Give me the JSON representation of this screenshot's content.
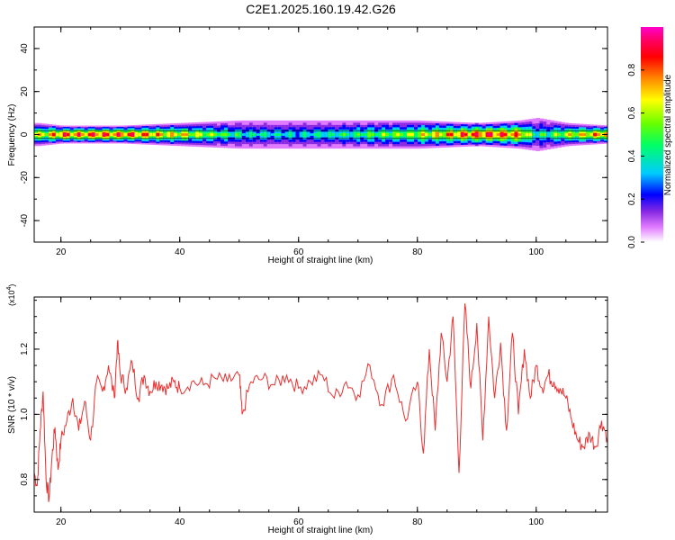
{
  "title": "C2E1.2025.160.19.42.G26",
  "chart_data": [
    {
      "type": "heatmap",
      "xlabel": "Height of straight line (km)",
      "ylabel": "Frequency (Hz)",
      "xlim": [
        15.5,
        112
      ],
      "ylim": [
        -50,
        50
      ],
      "xticks": [
        20,
        40,
        60,
        80,
        100
      ],
      "yticks": [
        40,
        20,
        0,
        -20,
        -40
      ],
      "yticklabels": [
        "40",
        "20",
        "0",
        "-20",
        "-40"
      ],
      "band_center_hz": 0,
      "colorbar": {
        "label": "Normalized spectral amplitude",
        "ticks": [
          0.0,
          0.2,
          0.4,
          0.6,
          0.8
        ],
        "ticklabels": [
          "0.0",
          "0.2",
          "0.4",
          "0.6",
          "0.8"
        ],
        "range": [
          0,
          1
        ],
        "colors": [
          "#ffffff",
          "#e07bff",
          "#8a2be2",
          "#0000ff",
          "#00ccff",
          "#00ff66",
          "#66ff00",
          "#ffff00",
          "#ff8800",
          "#ff0000",
          "#ff0066",
          "#ff00cc"
        ]
      },
      "band_profile": [
        {
          "x": 16,
          "halfwidth_hz": 4,
          "peak": 0.7
        },
        {
          "x": 20,
          "halfwidth_hz": 3,
          "peak": 0.9
        },
        {
          "x": 30,
          "halfwidth_hz": 3,
          "peak": 0.9
        },
        {
          "x": 40,
          "halfwidth_hz": 4,
          "peak": 0.75
        },
        {
          "x": 50,
          "halfwidth_hz": 5,
          "peak": 0.5
        },
        {
          "x": 60,
          "halfwidth_hz": 5,
          "peak": 0.45
        },
        {
          "x": 70,
          "halfwidth_hz": 5,
          "peak": 0.55
        },
        {
          "x": 80,
          "halfwidth_hz": 5,
          "peak": 0.7
        },
        {
          "x": 90,
          "halfwidth_hz": 4,
          "peak": 0.95
        },
        {
          "x": 97,
          "halfwidth_hz": 5,
          "peak": 0.85
        },
        {
          "x": 100,
          "halfwidth_hz": 6,
          "peak": 0.5
        },
        {
          "x": 105,
          "halfwidth_hz": 4,
          "peak": 0.7
        },
        {
          "x": 112,
          "halfwidth_hz": 3,
          "peak": 0.9
        }
      ]
    },
    {
      "type": "line",
      "xlabel": "Height of straight line (km)",
      "ylabel": "SNR (10 * v/v)",
      "yexponent_label": "(x10",
      "yexponent_power": "4",
      "yexponent_close": ")",
      "xlim": [
        15.5,
        112
      ],
      "ylim": [
        0.7,
        1.36
      ],
      "xticks": [
        20,
        40,
        60,
        80,
        100
      ],
      "yticks": [
        0.8,
        1.0,
        1.2
      ],
      "yticklabels": [
        "0.8",
        "1.0",
        "1.2"
      ],
      "line_color": "#e83030",
      "series": [
        {
          "x": [
            15.5,
            16,
            16.5,
            17,
            17.5,
            18,
            18.5,
            19,
            19.5,
            20,
            21,
            22,
            23,
            24,
            25,
            26,
            27,
            28,
            29,
            29.5,
            30,
            31,
            32,
            33,
            34,
            35,
            36,
            37,
            38,
            39,
            40,
            42,
            44,
            46,
            48,
            50,
            50.5,
            52,
            54,
            56,
            58,
            60,
            62,
            64,
            66,
            68,
            70,
            72,
            74,
            76,
            78,
            80,
            81,
            82,
            83,
            84,
            85,
            86,
            87,
            88,
            89,
            90,
            91,
            92,
            93,
            94,
            95,
            96,
            97,
            98,
            99,
            100,
            101,
            102,
            103,
            104,
            105,
            106,
            107,
            108,
            109,
            110,
            111,
            112
          ],
          "y": [
            0.82,
            0.78,
            0.95,
            1.07,
            0.8,
            0.74,
            0.87,
            0.96,
            0.83,
            0.92,
            0.98,
            1.05,
            0.95,
            1.04,
            0.92,
            1.1,
            1.07,
            1.15,
            1.05,
            1.22,
            1.12,
            1.08,
            1.16,
            1.05,
            1.12,
            1.07,
            1.1,
            1.09,
            1.08,
            1.1,
            1.08,
            1.1,
            1.09,
            1.11,
            1.1,
            1.12,
            1.0,
            1.1,
            1.11,
            1.09,
            1.12,
            1.08,
            1.1,
            1.12,
            1.05,
            1.1,
            1.06,
            1.15,
            1.03,
            1.12,
            0.98,
            1.1,
            0.88,
            1.2,
            0.95,
            1.25,
            1.1,
            1.3,
            0.82,
            1.34,
            1.08,
            1.28,
            0.92,
            1.3,
            1.05,
            1.22,
            0.95,
            1.25,
            1.0,
            1.2,
            1.05,
            1.15,
            1.08,
            1.12,
            1.1,
            1.08,
            1.05,
            0.98,
            0.92,
            0.9,
            0.94,
            0.9,
            0.98,
            0.93
          ]
        }
      ]
    }
  ]
}
